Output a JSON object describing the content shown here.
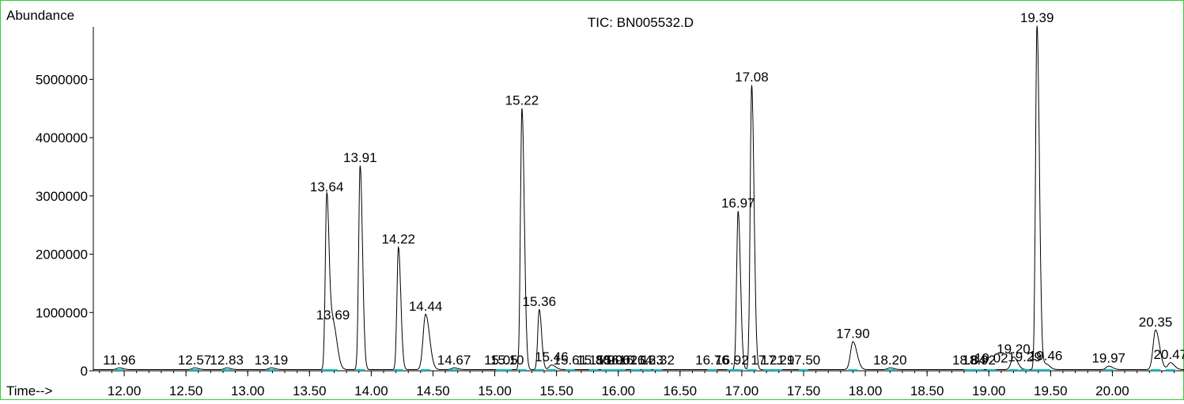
{
  "chart_data": {
    "type": "line",
    "title": "TIC: BN005532.D",
    "ylabel": "Abundance",
    "xlabel": "Time-->",
    "x_ticks": [
      "12.00",
      "12.50",
      "13.00",
      "13.50",
      "14.00",
      "14.50",
      "15.00",
      "15.50",
      "16.00",
      "16.50",
      "17.00",
      "17.50",
      "18.00",
      "18.50",
      "19.00",
      "19.50",
      "20.00"
    ],
    "x_tick_values": [
      12.0,
      12.5,
      13.0,
      13.5,
      14.0,
      14.5,
      15.0,
      15.5,
      16.0,
      16.5,
      17.0,
      17.5,
      18.0,
      18.5,
      19.0,
      19.5,
      20.0
    ],
    "y_ticks": [
      "0",
      "1000000",
      "2000000",
      "3000000",
      "4000000",
      "5000000"
    ],
    "y_tick_values": [
      0,
      1000000,
      2000000,
      3000000,
      4000000,
      5000000
    ],
    "xlim": [
      11.75,
      20.58
    ],
    "ylim": [
      0,
      5900000
    ],
    "baseline": 20000,
    "peaks": [
      {
        "rt": 11.96,
        "height": 30000
      },
      {
        "rt": 12.57,
        "height": 30000
      },
      {
        "rt": 12.83,
        "height": 30000
      },
      {
        "rt": 13.19,
        "height": 30000
      },
      {
        "rt": 13.64,
        "height": 3000000
      },
      {
        "rt": 13.69,
        "height": 800000
      },
      {
        "rt": 13.91,
        "height": 3500000
      },
      {
        "rt": 14.22,
        "height": 2100000
      },
      {
        "rt": 14.44,
        "height": 950000
      },
      {
        "rt": 14.67,
        "height": 30000
      },
      {
        "rt": 15.22,
        "height": 4480000
      },
      {
        "rt": 15.36,
        "height": 1030000
      },
      {
        "rt": 15.46,
        "height": 80000
      },
      {
        "rt": 16.97,
        "height": 2720000
      },
      {
        "rt": 17.08,
        "height": 4880000
      },
      {
        "rt": 17.9,
        "height": 480000
      },
      {
        "rt": 18.2,
        "height": 30000
      },
      {
        "rt": 19.2,
        "height": 220000
      },
      {
        "rt": 19.39,
        "height": 5900000
      },
      {
        "rt": 19.46,
        "height": 100000
      },
      {
        "rt": 19.97,
        "height": 60000
      },
      {
        "rt": 20.35,
        "height": 680000
      },
      {
        "rt": 20.47,
        "height": 120000
      }
    ],
    "peak_labels": [
      {
        "text": "11.96",
        "rt": 11.96,
        "h": 30000
      },
      {
        "text": "12.57",
        "rt": 12.57,
        "h": 30000
      },
      {
        "text": "12.83",
        "rt": 12.83,
        "h": 30000
      },
      {
        "text": "13.19",
        "rt": 13.19,
        "h": 30000
      },
      {
        "text": "13.64",
        "rt": 13.64,
        "h": 3000000
      },
      {
        "text": "13.69",
        "rt": 13.69,
        "h": 800000
      },
      {
        "text": "13.91",
        "rt": 13.91,
        "h": 3500000
      },
      {
        "text": "14.22",
        "rt": 14.22,
        "h": 2100000
      },
      {
        "text": "14.44",
        "rt": 14.44,
        "h": 950000
      },
      {
        "text": "14.67",
        "rt": 14.67,
        "h": 30000
      },
      {
        "text": "15.05",
        "rt": 15.05,
        "h": 30000
      },
      {
        "text": "15.10",
        "rt": 15.1,
        "h": 30000
      },
      {
        "text": "15.22",
        "rt": 15.22,
        "h": 4480000
      },
      {
        "text": "15.36",
        "rt": 15.36,
        "h": 1030000
      },
      {
        "text": "15.46",
        "rt": 15.46,
        "h": 80000
      },
      {
        "text": "15.61",
        "rt": 15.61,
        "h": 30000
      },
      {
        "text": "15.80",
        "rt": 15.8,
        "h": 30000
      },
      {
        "text": "15.90",
        "rt": 15.9,
        "h": 30000
      },
      {
        "text": "15.96",
        "rt": 15.96,
        "h": 30000
      },
      {
        "text": "16.02",
        "rt": 16.02,
        "h": 30000
      },
      {
        "text": "16.14",
        "rt": 16.14,
        "h": 30000
      },
      {
        "text": "16.23",
        "rt": 16.23,
        "h": 30000
      },
      {
        "text": "16.32",
        "rt": 16.32,
        "h": 30000
      },
      {
        "text": "16.76",
        "rt": 16.76,
        "h": 30000
      },
      {
        "text": "16.92",
        "rt": 16.92,
        "h": 30000
      },
      {
        "text": "16.97",
        "rt": 16.97,
        "h": 2720000
      },
      {
        "text": "17.08",
        "rt": 17.08,
        "h": 4880000
      },
      {
        "text": "17.21",
        "rt": 17.21,
        "h": 30000
      },
      {
        "text": "17.29",
        "rt": 17.29,
        "h": 30000
      },
      {
        "text": "17.50",
        "rt": 17.5,
        "h": 30000
      },
      {
        "text": "17.90",
        "rt": 17.9,
        "h": 480000
      },
      {
        "text": "18.20",
        "rt": 18.2,
        "h": 30000
      },
      {
        "text": "18.84",
        "rt": 18.84,
        "h": 30000
      },
      {
        "text": "18.92",
        "rt": 18.92,
        "h": 30000
      },
      {
        "text": "19.02",
        "rt": 19.02,
        "h": 60000
      },
      {
        "text": "19.20",
        "rt": 19.2,
        "h": 220000
      },
      {
        "text": "19.29",
        "rt": 19.29,
        "h": 80000
      },
      {
        "text": "19.39",
        "rt": 19.39,
        "h": 5900000
      },
      {
        "text": "19.46",
        "rt": 19.46,
        "h": 100000
      },
      {
        "text": "19.97",
        "rt": 19.97,
        "h": 60000
      },
      {
        "text": "20.35",
        "rt": 20.35,
        "h": 680000
      },
      {
        "text": "20.47",
        "rt": 20.47,
        "h": 120000
      }
    ],
    "grid": false,
    "legend": "none",
    "colors": {
      "trace": "#000000",
      "integration": "#00c0c0",
      "frame_border": "#33cc33",
      "axis": "#000000"
    }
  }
}
